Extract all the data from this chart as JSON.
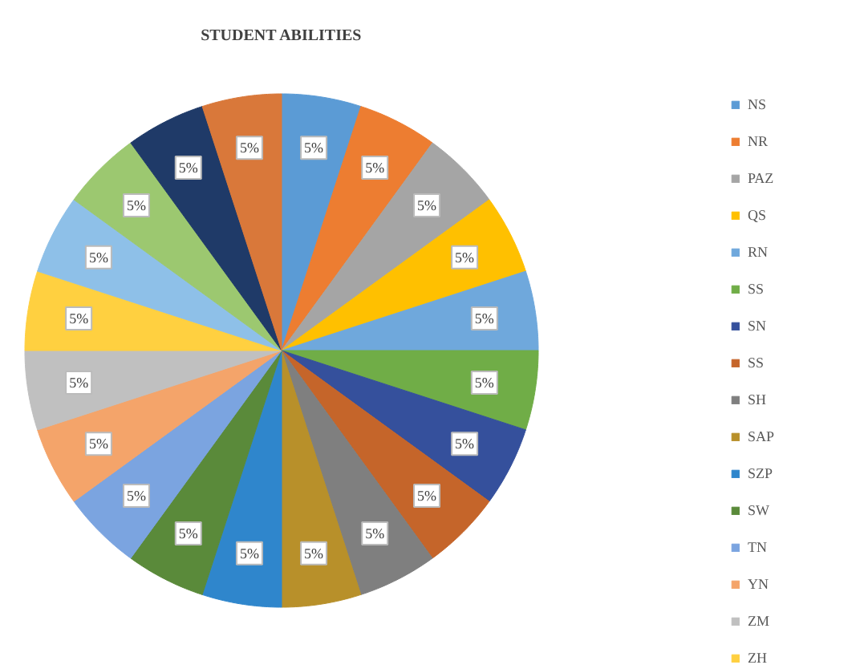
{
  "chart_data": {
    "type": "pie",
    "title": "STUDENT ABILITIES",
    "categories": [
      "NS",
      "NR",
      "PAZ",
      "QS",
      "RN",
      "SS",
      "SN",
      "SS",
      "SH",
      "SAP",
      "SZP",
      "SW",
      "TN",
      "YN",
      "ZM",
      "ZH",
      null,
      null,
      null,
      null
    ],
    "values": [
      5,
      5,
      5,
      5,
      5,
      5,
      5,
      5,
      5,
      5,
      5,
      5,
      5,
      5,
      5,
      5,
      5,
      5,
      5,
      5
    ],
    "value_labels": [
      "5%",
      "5%",
      "5%",
      "5%",
      "5%",
      "5%",
      "5%",
      "5%",
      "5%",
      "5%",
      "5%",
      "5%",
      "5%",
      "5%",
      "5%",
      "5%",
      "5%",
      "5%",
      "5%",
      "5%"
    ],
    "colors": [
      "#5b9bd5",
      "#ed7d31",
      "#a5a5a5",
      "#ffc000",
      "#6fa8dc",
      "#70ad47",
      "#35509c",
      "#c5652a",
      "#7f7f7f",
      "#b8902a",
      "#2f86cc",
      "#5a8a3a",
      "#7ba4e0",
      "#f4a46a",
      "#c0c0c0",
      "#ffd040",
      "#8ec0e8",
      "#9cc870",
      "#1f3a68",
      "#d9783a"
    ],
    "legend": "right"
  }
}
